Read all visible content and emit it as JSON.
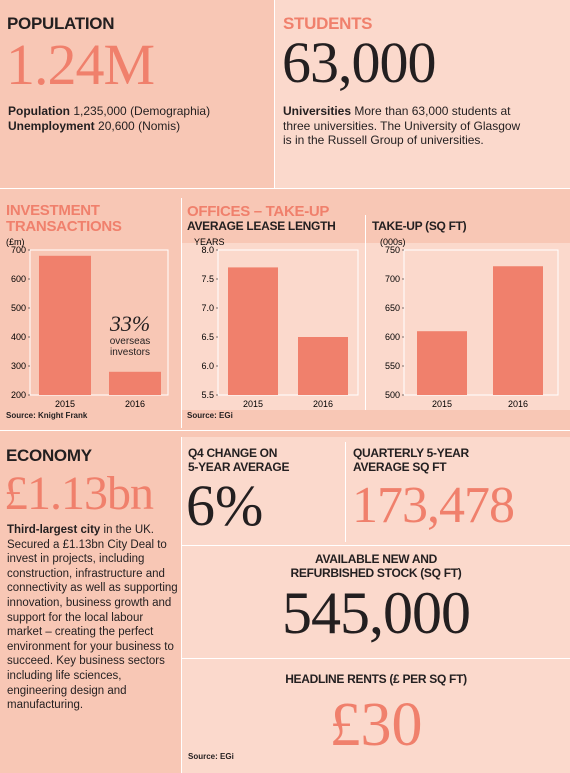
{
  "population": {
    "title": "POPULATION",
    "big": "1.24M",
    "line1_label": "Population",
    "line1_value": "1,235,000 (Demographia)",
    "line2_label": "Unemployment",
    "line2_value": "20,600 (Nomis)"
  },
  "students": {
    "title": "STUDENTS",
    "big": "63,000",
    "lead": "Universities",
    "text": "More than 63,000 students at three universities. The University of Glasgow is in the Russell Group of universities."
  },
  "investment": {
    "title_line1": "INVESTMENT",
    "title_line2": "TRANSACTIONS",
    "note_big": "33%",
    "note_line1": "overseas",
    "note_line2": "investors",
    "source": "Source: Knight Frank"
  },
  "offices": {
    "title": "OFFICES – TAKE-UP",
    "lease_title": "AVERAGE LEASE LENGTH",
    "takeup_title": "TAKE-UP (SQ FT)",
    "source": "Source: EGi"
  },
  "economy": {
    "title": "ECONOMY",
    "big": "£1.13bn",
    "lead": "Third-largest city",
    "text": " in the UK. Secured a £1.13bn City Deal to invest in projects, including construction, infrastructure and connectivity as well as supporting innovation, business growth and support for the local labour market – creating the perfect environment for your business to succeed. Key business sectors including life sciences, engineering design and manufacturing."
  },
  "q4": {
    "title_line1": "Q4 CHANGE ON",
    "title_line2": "5-YEAR AVERAGE",
    "big": "6%"
  },
  "quarterly": {
    "title_line1": "QUARTERLY 5-YEAR",
    "title_line2": "AVERAGE SQ FT",
    "big": "173,478"
  },
  "stock": {
    "title_line1": "AVAILABLE NEW AND",
    "title_line2": "REFURBISHED STOCK (SQ FT)",
    "big": "545,000"
  },
  "rents": {
    "title": "HEADLINE RENTS (£ PER SQ FT)",
    "big": "£30",
    "source": "Source: EGi"
  },
  "colors": {
    "bar": "#f0806c",
    "background": "#f8c7b5",
    "panel": "#fbd9cc",
    "text": "#231f20"
  },
  "chart_data": [
    {
      "type": "bar",
      "ylabel": "(£m)",
      "categories": [
        "2015",
        "2016"
      ],
      "values": [
        680,
        280
      ],
      "ylim": [
        200,
        700
      ],
      "yticks": [
        "700",
        "600",
        "500",
        "400",
        "300",
        "200"
      ]
    },
    {
      "type": "bar",
      "ylabel": "YEARS",
      "categories": [
        "2015",
        "2016"
      ],
      "values": [
        7.7,
        6.5
      ],
      "ylim": [
        5.5,
        8.0
      ],
      "yticks": [
        "8.0",
        "7.5",
        "7.0",
        "6.5",
        "6.0",
        "5.5"
      ]
    },
    {
      "type": "bar",
      "ylabel": "(000s)",
      "categories": [
        "2015",
        "2016"
      ],
      "values": [
        610,
        722
      ],
      "ylim": [
        500,
        750
      ],
      "yticks": [
        "750",
        "700",
        "650",
        "600",
        "550",
        "500"
      ]
    }
  ]
}
